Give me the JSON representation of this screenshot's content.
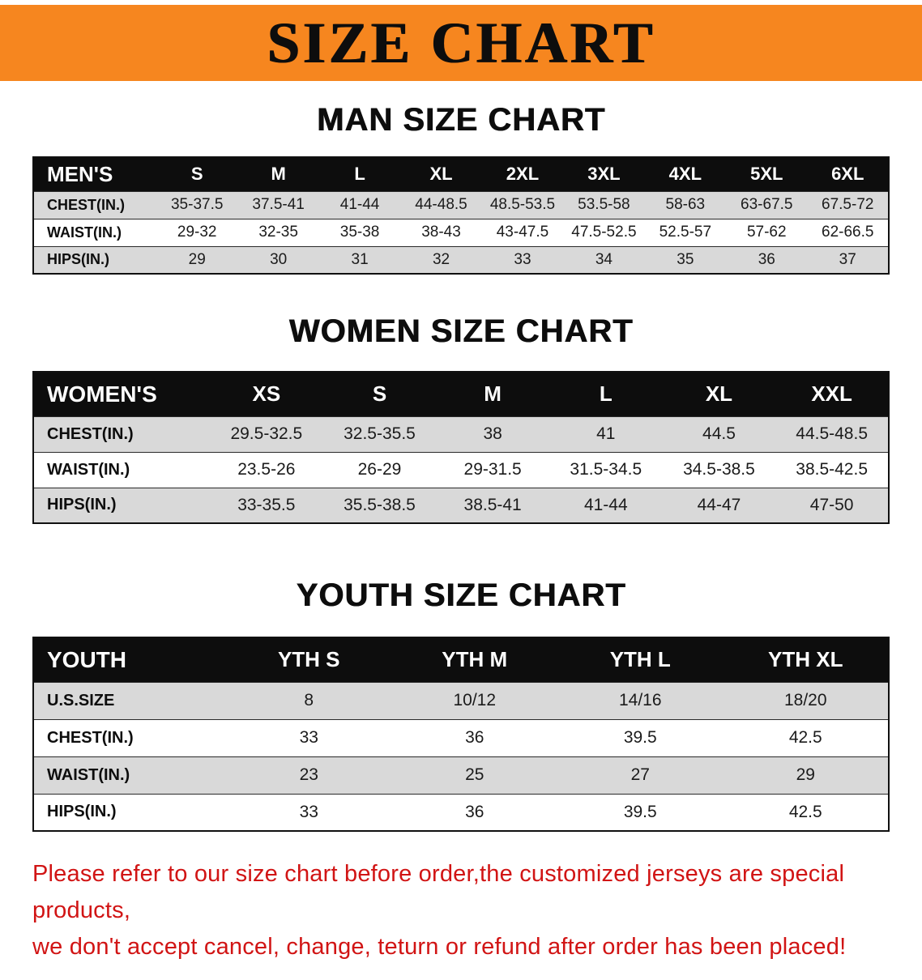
{
  "banner": {
    "title": "SIZE CHART",
    "bg_color": "#f6861f",
    "text_color": "#0d0d0d"
  },
  "sections": [
    {
      "id": "men",
      "title": "MAN SIZE CHART",
      "header": [
        "MEN'S",
        "S",
        "M",
        "L",
        "XL",
        "2XL",
        "3XL",
        "4XL",
        "5XL",
        "6XL"
      ],
      "rows": [
        [
          "CHEST(IN.)",
          "35-37.5",
          "37.5-41",
          "41-44",
          "44-48.5",
          "48.5-53.5",
          "53.5-58",
          "58-63",
          "63-67.5",
          "67.5-72"
        ],
        [
          "WAIST(IN.)",
          "29-32",
          "32-35",
          "35-38",
          "38-43",
          "43-47.5",
          "47.5-52.5",
          "52.5-57",
          "57-62",
          "62-66.5"
        ],
        [
          "HIPS(IN.)",
          "29",
          "30",
          "31",
          "32",
          "33",
          "34",
          "35",
          "36",
          "37"
        ]
      ]
    },
    {
      "id": "women",
      "title": "WOMEN SIZE CHART",
      "header": [
        "WOMEN'S",
        "XS",
        "S",
        "M",
        "L",
        "XL",
        "XXL"
      ],
      "rows": [
        [
          "CHEST(IN.)",
          "29.5-32.5",
          "32.5-35.5",
          "38",
          "41",
          "44.5",
          "44.5-48.5"
        ],
        [
          "WAIST(IN.)",
          "23.5-26",
          "26-29",
          "29-31.5",
          "31.5-34.5",
          "34.5-38.5",
          "38.5-42.5"
        ],
        [
          "HIPS(IN.)",
          "33-35.5",
          "35.5-38.5",
          "38.5-41",
          "41-44",
          "44-47",
          "47-50"
        ]
      ]
    },
    {
      "id": "youth",
      "title": "YOUTH SIZE CHART",
      "header": [
        "YOUTH",
        "YTH S",
        "YTH M",
        "YTH L",
        "YTH XL"
      ],
      "rows": [
        [
          "U.S.SIZE",
          "8",
          "10/12",
          "14/16",
          "18/20"
        ],
        [
          "CHEST(IN.)",
          "33",
          "36",
          "39.5",
          "42.5"
        ],
        [
          "WAIST(IN.)",
          "23",
          "25",
          "27",
          "29"
        ],
        [
          "HIPS(IN.)",
          "33",
          "36",
          "39.5",
          "42.5"
        ]
      ]
    }
  ],
  "footer": {
    "line1": "Please refer to our size chart before order,the customized jerseys are special products,",
    "line2": "we don't accept cancel, change, teturn or refund after order has been placed!",
    "text_color": "#d11414"
  }
}
